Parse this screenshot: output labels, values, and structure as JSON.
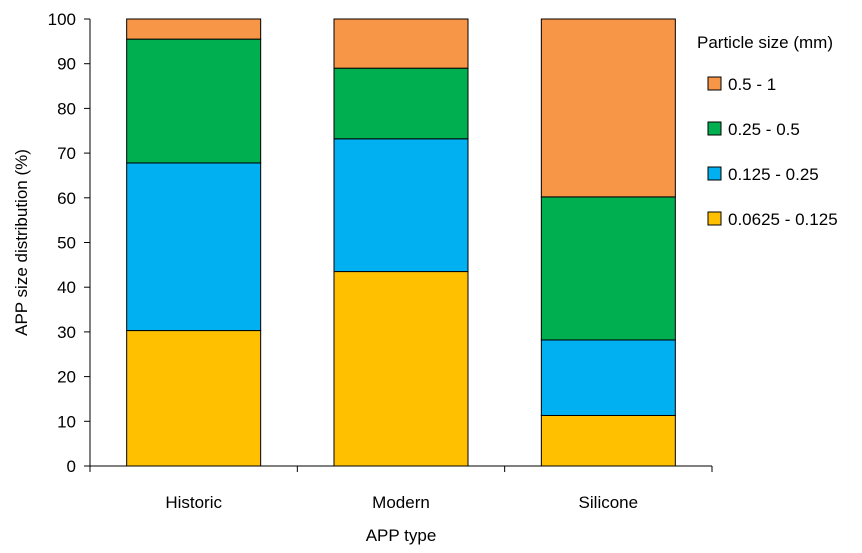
{
  "chart_data": {
    "type": "bar",
    "stacked": true,
    "xlabel": "APP type",
    "ylabel": "APP size distribution (%)",
    "ylim": [
      0,
      100
    ],
    "yticks": [
      0,
      10,
      20,
      30,
      40,
      50,
      60,
      70,
      80,
      90,
      100
    ],
    "grid": false,
    "categories": [
      "Historic",
      "Modern",
      "Silicone"
    ],
    "legend": {
      "title": "Particle size (mm)",
      "placement": "right"
    },
    "series": [
      {
        "name": "0.0625 - 0.125",
        "color": "#FFC000",
        "values": [
          30.3,
          43.5,
          11.3
        ]
      },
      {
        "name": "0.125 - 0.25",
        "color": "#00B0F0",
        "values": [
          37.5,
          29.7,
          16.9
        ]
      },
      {
        "name": "0.25 - 0.5",
        "color": "#00B050",
        "values": [
          27.7,
          15.8,
          32.0
        ]
      },
      {
        "name": "0.5 - 1",
        "color": "#F79646",
        "values": [
          4.5,
          11.0,
          39.8
        ]
      }
    ]
  }
}
